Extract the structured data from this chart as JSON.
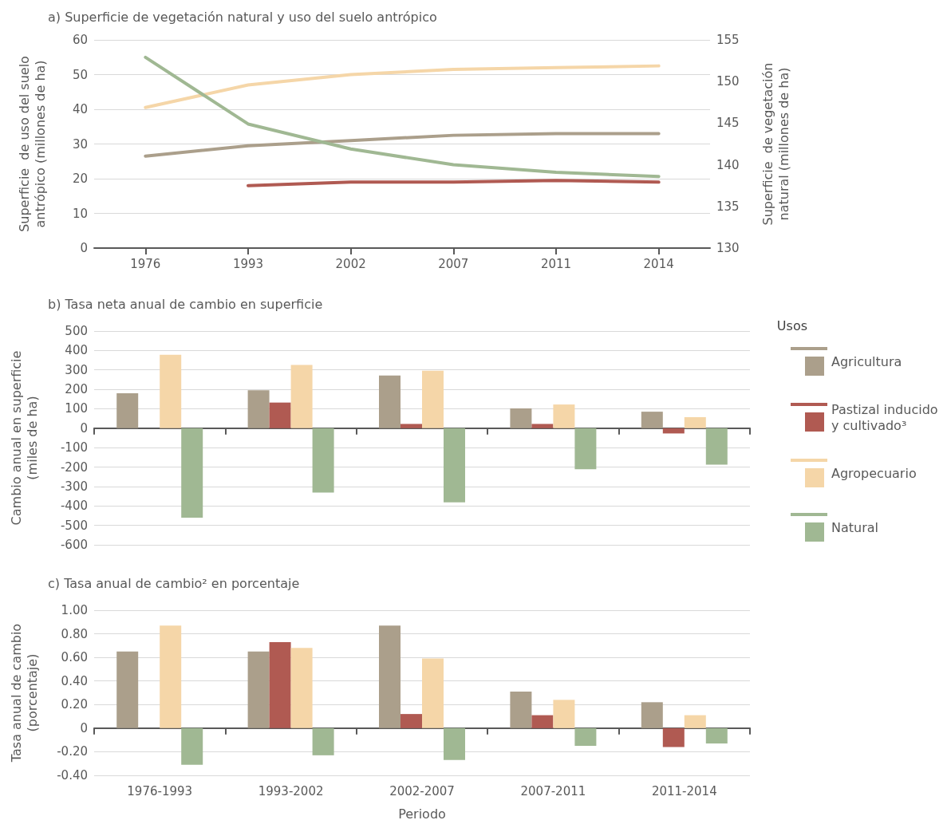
{
  "chart_data": [
    {
      "type": "line",
      "title": "a) Superficie de vegetación natural y uso del suelo antrópico",
      "ylabel": "Superficie  de uso del suelo antrópico (millones de ha)",
      "y2label": "Superficie  de vegetación natural (millones de ha)",
      "categories": [
        "1976",
        "1993",
        "2002",
        "2007",
        "2011",
        "2014"
      ],
      "series": [
        {
          "color": "#ab9f8b",
          "values": [
            26.5,
            29.5,
            31,
            32.5,
            33,
            33
          ]
        },
        {
          "color": "#b05a52",
          "values": [
            null,
            18,
            19,
            19,
            19.5,
            19
          ]
        },
        {
          "color": "#f5d6a8",
          "values": [
            40.5,
            47,
            50,
            51.5,
            52,
            52.5
          ]
        },
        {
          "color": "#a0b893",
          "axis": "y2",
          "values": [
            152.9,
            144.9,
            141.9,
            140.0,
            139.1,
            138.6
          ]
        }
      ],
      "ylim": [
        0,
        60
      ],
      "yticks": [
        0,
        10,
        20,
        30,
        40,
        50,
        60
      ],
      "y2lim": [
        130,
        155
      ],
      "y2ticks": [
        130,
        135,
        140,
        145,
        150,
        155
      ],
      "grid": "y",
      "marker": "none",
      "line_style": "solid"
    },
    {
      "type": "bar",
      "title": "b) Tasa neta anual de cambio en superficie",
      "ylabel": "Cambio anual en superficie (miles de ha)",
      "legend_title": "Usos",
      "categories": [
        null,
        null,
        null,
        null,
        null
      ],
      "series": [
        {
          "name": "Agricultura",
          "color": "#ab9f8b",
          "values": [
            180,
            195,
            271,
            102,
            85
          ]
        },
        {
          "name": "Pastizal inducido y cultivado³",
          "color": "#b05a52",
          "values": [
            null,
            132,
            22,
            22,
            -27
          ]
        },
        {
          "name": "Agropecuario",
          "color": "#f5d6a8",
          "values": [
            378,
            326,
            296,
            122,
            57
          ]
        },
        {
          "name": "Natural",
          "color": "#a0b893",
          "values": [
            -460,
            -331,
            -381,
            -211,
            -187
          ]
        }
      ],
      "ylim": [
        -600,
        500
      ],
      "yticks": [
        -600,
        -500,
        -400,
        -300,
        -200,
        -100,
        0,
        100,
        200,
        300,
        400,
        500
      ],
      "grid": "y",
      "legend": "right"
    },
    {
      "type": "bar",
      "title": "c) Tasa anual de cambio² en porcentaje",
      "ylabel": "Tasa anual de cambio (porcentaje)",
      "xlabel": "Periodo",
      "categories": [
        "1976-1993",
        "1993-2002",
        "2002-2007",
        "2007-2011",
        "2011-2014"
      ],
      "series": [
        {
          "color": "#ab9f8b",
          "values": [
            0.65,
            0.65,
            0.87,
            0.31,
            0.22
          ]
        },
        {
          "color": "#b05a52",
          "values": [
            null,
            0.73,
            0.12,
            0.11,
            -0.16
          ]
        },
        {
          "color": "#f5d6a8",
          "values": [
            0.87,
            0.68,
            0.59,
            0.24,
            0.11
          ]
        },
        {
          "color": "#a0b893",
          "values": [
            -0.31,
            -0.23,
            -0.27,
            -0.15,
            -0.13
          ]
        }
      ],
      "ylim": [
        -0.4,
        1.0
      ],
      "yticks": [
        {
          "value": -0.4,
          "label": "-0.40"
        },
        {
          "value": -0.2,
          "label": "-0.20"
        },
        0,
        {
          "value": 0.2,
          "label": "0.20"
        },
        {
          "value": 0.4,
          "label": "0.40"
        },
        {
          "value": 0.6,
          "label": "0.60"
        },
        {
          "value": 0.8,
          "label": "0.80"
        },
        {
          "value": 1.0,
          "label": "1.00"
        }
      ],
      "grid": "y"
    }
  ]
}
